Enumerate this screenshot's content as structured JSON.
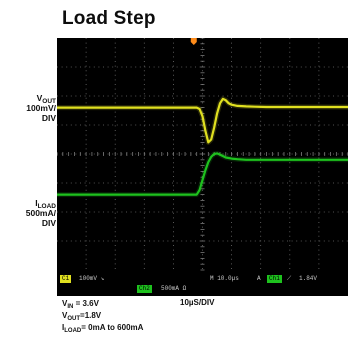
{
  "chart_data": {
    "type": "line",
    "title": "Load Step",
    "x_unit": "µs",
    "time_per_div": "10µS/DIV",
    "trigger_marker": "trigger-marker-icon",
    "colors": {
      "ch1": "#e0e020",
      "ch2": "#1ec21e",
      "grid": "#7a7a7a",
      "trigger": "#ff8c1a",
      "background": "#000000"
    },
    "channels": [
      {
        "id": "ch1",
        "label_parts": [
          "V",
          "OUT"
        ],
        "scale_line1": "100mV/",
        "scale_line2": "DIV",
        "offset_div": 1.6,
        "scale_per_div_mV": 100,
        "x": [
          -50,
          -2,
          -1,
          0,
          1,
          2,
          3,
          4,
          5,
          6,
          7,
          8,
          9,
          10,
          12,
          15,
          18,
          22,
          30,
          40,
          50
        ],
        "y": [
          0,
          0,
          -5,
          -30,
          -80,
          -120,
          -110,
          -70,
          -20,
          15,
          30,
          25,
          15,
          10,
          6,
          4,
          3,
          2,
          2,
          2,
          2
        ]
      },
      {
        "id": "ch2",
        "label_parts": [
          "I",
          "LOAD"
        ],
        "scale_line1": "500mA/",
        "scale_line2": "DIV",
        "offset_div": -1.4,
        "scale_per_div_mA": 500,
        "x": [
          -50,
          -2,
          -1,
          0,
          1,
          2,
          3,
          4,
          5,
          6,
          8,
          10,
          12,
          15,
          18,
          22,
          30,
          40,
          50
        ],
        "y": [
          0,
          0,
          80,
          250,
          420,
          560,
          650,
          700,
          710,
          690,
          640,
          620,
          610,
          600,
          600,
          600,
          600,
          600,
          600
        ]
      }
    ],
    "xlim": [
      -50,
      50
    ],
    "grid": true,
    "conditions": [
      {
        "main": "V",
        "sub": "IN",
        "rest": " = 3.6V"
      },
      {
        "main": "V",
        "sub": "OUT",
        "rest": "=1.8V"
      },
      {
        "main": "I",
        "sub": "LOAD",
        "rest": "= 0mA to 600mA"
      }
    ],
    "status_bar": {
      "ch1_tag": "C1",
      "ch1_scale": "100mV ↘",
      "timebase": "M 10.0µs",
      "trig_tag": "A",
      "trig_src": "Ch1",
      "trig_slope": "⟋",
      "trig_level": "1.84V",
      "ch2_tag": "Ch2",
      "ch2_scale": "500mA Ω"
    }
  }
}
